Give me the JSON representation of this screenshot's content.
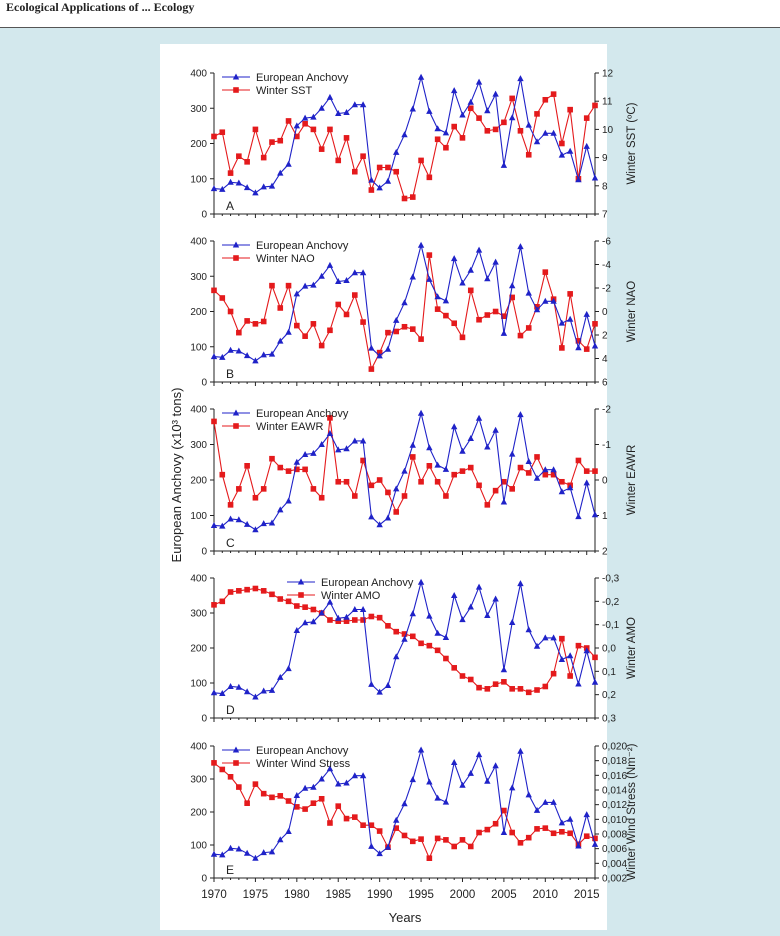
{
  "header": {
    "text": "Ecological Applications of ... Ecology"
  },
  "colors": {
    "anchovy": "#1f22c8",
    "driver": "#e41a1c",
    "axis": "#222222",
    "panel": "#d3e8ed",
    "figure": "#ffffff"
  },
  "years": [
    1970,
    1971,
    1972,
    1973,
    1974,
    1975,
    1976,
    1977,
    1978,
    1979,
    1980,
    1981,
    1982,
    1983,
    1984,
    1985,
    1986,
    1987,
    1988,
    1989,
    1990,
    1991,
    1992,
    1993,
    1994,
    1995,
    1996,
    1997,
    1998,
    1999,
    2000,
    2001,
    2002,
    2003,
    2004,
    2005,
    2006,
    2007,
    2008,
    2009,
    2010,
    2011,
    2012,
    2013,
    2014,
    2015,
    2016
  ],
  "anchovy": [
    72,
    70,
    90,
    88,
    75,
    60,
    77,
    79,
    116,
    141,
    250,
    272,
    275,
    300,
    331,
    285,
    288,
    310,
    310,
    96,
    74,
    93,
    175,
    225,
    298,
    388,
    291,
    242,
    230,
    350,
    281,
    317,
    374,
    293,
    340,
    138,
    273,
    384,
    252,
    205,
    229,
    229,
    167,
    178,
    97,
    192,
    102
  ],
  "chart_data": [
    {
      "type": "line",
      "panel": "A",
      "xlabel": "Years",
      "ylabel": "European Anchovy (x10³ tons)",
      "ylabel_right": "Winter SST (ºC)",
      "ylim": [
        0,
        400
      ],
      "yticks": [
        0,
        100,
        200,
        300,
        400
      ],
      "y2lim": [
        7,
        12
      ],
      "y2ticks": [
        "7",
        "8",
        "9",
        "10",
        "11",
        "12"
      ],
      "y2_inverted": false,
      "series": [
        {
          "name": "European Anchovy",
          "axis": "left",
          "marker": "triangle"
        },
        {
          "name": "Winter SST",
          "axis": "right",
          "marker": "square",
          "values": [
            9.75,
            9.9,
            8.45,
            9.05,
            8.85,
            10.0,
            9.0,
            9.55,
            9.6,
            10.3,
            9.75,
            10.2,
            10.0,
            9.3,
            10.0,
            8.9,
            9.7,
            8.5,
            9.05,
            7.85,
            8.65,
            8.65,
            8.5,
            7.55,
            7.6,
            8.9,
            8.3,
            9.65,
            9.35,
            10.1,
            9.7,
            10.75,
            10.4,
            9.95,
            10.0,
            10.25,
            11.1,
            9.95,
            9.1,
            10.55,
            11.05,
            11.25,
            9.5,
            10.7,
            8.25,
            10.4,
            10.85
          ]
        }
      ]
    },
    {
      "type": "line",
      "panel": "B",
      "ylabel_right": "Winter NAO",
      "ylim": [
        0,
        400
      ],
      "yticks": [
        0,
        100,
        200,
        300,
        400
      ],
      "y2lim": [
        6,
        -6
      ],
      "y2ticks": [
        "6",
        "4",
        "2",
        "0",
        "-2",
        "-4",
        "-6"
      ],
      "y2_inverted": true,
      "series": [
        {
          "name": "European Anchovy",
          "axis": "left",
          "marker": "triangle"
        },
        {
          "name": "Winter NAO",
          "axis": "right",
          "marker": "square",
          "values": [
            -1.8,
            -1.15,
            0.0,
            1.8,
            0.8,
            1.05,
            0.85,
            -2.2,
            -0.3,
            -2.2,
            1.2,
            2.1,
            1.05,
            2.9,
            1.6,
            -0.6,
            0.25,
            -1.4,
            0.9,
            4.9,
            3.5,
            1.8,
            1.7,
            1.3,
            1.5,
            2.35,
            -4.8,
            -0.2,
            0.35,
            1.0,
            2.2,
            -1.8,
            0.7,
            0.3,
            0.0,
            0.4,
            -1.2,
            2.05,
            1.4,
            -0.4,
            -3.35,
            -1.05,
            3.1,
            -1.5,
            2.5,
            3.2,
            1.05
          ]
        }
      ]
    },
    {
      "type": "line",
      "panel": "C",
      "ylabel_right": "Winter EAWR",
      "ylim": [
        0,
        400
      ],
      "yticks": [
        0,
        100,
        200,
        300,
        400
      ],
      "y2lim": [
        2,
        -2
      ],
      "y2ticks": [
        "2",
        "1",
        "0",
        "-1",
        "-2"
      ],
      "y2_inverted": true,
      "series": [
        {
          "name": "European Anchovy",
          "axis": "left",
          "marker": "triangle"
        },
        {
          "name": "Winter EAWR",
          "axis": "right",
          "marker": "square",
          "values": [
            -1.65,
            -0.15,
            0.7,
            0.25,
            -0.4,
            0.5,
            0.25,
            -0.6,
            -0.35,
            -0.25,
            -0.3,
            -0.3,
            0.25,
            0.5,
            -1.75,
            0.05,
            0.05,
            0.45,
            -0.55,
            0.15,
            0.0,
            0.35,
            0.9,
            0.45,
            -0.65,
            0.05,
            -0.4,
            0.05,
            0.45,
            -0.15,
            -0.25,
            -0.35,
            0.15,
            0.7,
            0.3,
            0.05,
            0.25,
            -0.35,
            -0.2,
            -0.65,
            -0.15,
            -0.15,
            0.05,
            0.15,
            -0.55,
            -0.25,
            -0.25
          ]
        }
      ]
    },
    {
      "type": "line",
      "panel": "D",
      "ylabel_right": "Winter AMO",
      "ylim": [
        0,
        400
      ],
      "yticks": [
        0,
        100,
        200,
        300,
        400
      ],
      "y2lim": [
        0.3,
        -0.3
      ],
      "y2ticks": [
        "0,3",
        "0,2",
        "0,1",
        "0,0",
        "-0,1",
        "-0,2",
        "-0,3"
      ],
      "y2_inverted": true,
      "series": [
        {
          "name": "European Anchovy",
          "axis": "left",
          "marker": "triangle"
        },
        {
          "name": "Winter AMO",
          "axis": "right",
          "marker": "square",
          "values": [
            -0.185,
            -0.2,
            -0.24,
            -0.245,
            -0.25,
            -0.255,
            -0.245,
            -0.23,
            -0.21,
            -0.2,
            -0.18,
            -0.175,
            -0.165,
            -0.15,
            -0.12,
            -0.115,
            -0.115,
            -0.12,
            -0.12,
            -0.135,
            -0.13,
            -0.095,
            -0.07,
            -0.06,
            -0.05,
            -0.02,
            -0.01,
            0.01,
            0.045,
            0.085,
            0.12,
            0.135,
            0.17,
            0.175,
            0.155,
            0.145,
            0.175,
            0.175,
            0.19,
            0.18,
            0.165,
            0.11,
            -0.04,
            0.12,
            -0.01,
            0.0,
            0.04
          ]
        }
      ]
    },
    {
      "type": "line",
      "panel": "E",
      "ylabel_right": "Winter Wind Stress (Nm⁻²)",
      "ylim": [
        0,
        400
      ],
      "yticks": [
        0,
        100,
        200,
        300,
        400
      ],
      "y2lim": [
        0.002,
        0.02
      ],
      "y2ticks": [
        "0,002",
        "0,004",
        "0,006",
        "0,008",
        "0,010",
        "0,012",
        "0,014",
        "0,016",
        "0,018",
        "0,020"
      ],
      "y2_inverted": false,
      "series": [
        {
          "name": "European Anchovy",
          "axis": "left",
          "marker": "triangle"
        },
        {
          "name": "Winter Wind Stress",
          "axis": "right",
          "marker": "square",
          "values": [
            0.0177,
            0.0168,
            0.0158,
            0.0144,
            0.0122,
            0.0148,
            0.0135,
            0.013,
            0.0132,
            0.0125,
            0.0117,
            0.0114,
            0.0122,
            0.0128,
            0.0095,
            0.0118,
            0.0101,
            0.0103,
            0.0092,
            0.0092,
            0.0084,
            0.0062,
            0.0088,
            0.0078,
            0.007,
            0.0073,
            0.0047,
            0.0074,
            0.0072,
            0.0063,
            0.0072,
            0.0063,
            0.0082,
            0.0086,
            0.0094,
            0.0112,
            0.0082,
            0.0068,
            0.0075,
            0.0087,
            0.0088,
            0.0081,
            0.0083,
            0.0081,
            0.0066,
            0.0077,
            0.0074
          ]
        }
      ]
    }
  ],
  "xaxis": {
    "ticks": [
      1970,
      1975,
      1980,
      1985,
      1990,
      1995,
      2000,
      2005,
      2010,
      2015
    ],
    "label": "Years"
  },
  "shared_ylabel": "European Anchovy (x10³ tons)"
}
